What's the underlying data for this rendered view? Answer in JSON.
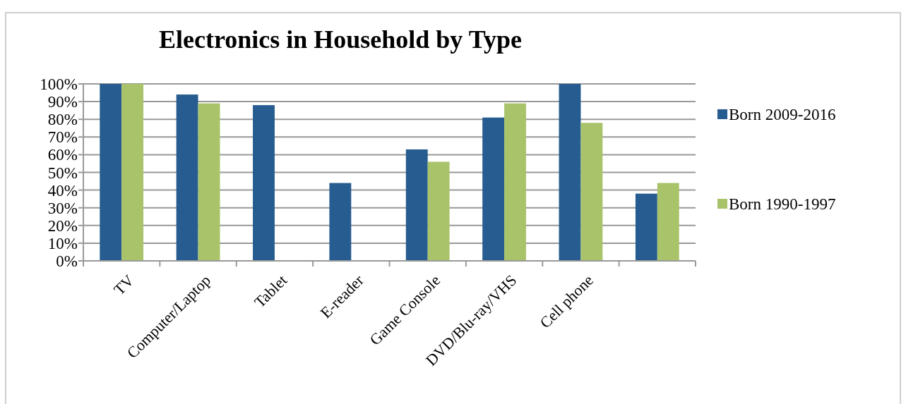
{
  "chart_data": {
    "type": "bar",
    "title": "Electronics in Household by Type",
    "categories": [
      "TV",
      "Computer/Laptop",
      "Tablet",
      "E-reader",
      "Game Console",
      "DVD/Blu-ray/VHS",
      "Cell phone",
      null
    ],
    "series": [
      {
        "name": "Born 2009-2016",
        "color": "#265c8f",
        "values": [
          100,
          94,
          88,
          44,
          63,
          81,
          100,
          38
        ]
      },
      {
        "name": "Born 1990-1997",
        "color": "#a9c36a",
        "values": [
          100,
          89,
          null,
          null,
          56,
          89,
          78,
          44
        ]
      }
    ],
    "ylim": [
      0,
      100
    ],
    "yticks": [
      {
        "value": 0,
        "label": "0%"
      },
      {
        "value": 10,
        "label": "10%"
      },
      {
        "value": 20,
        "label": "20%"
      },
      {
        "value": 30,
        "label": "30%"
      },
      {
        "value": 40,
        "label": "40%"
      },
      {
        "value": 50,
        "label": "50%"
      },
      {
        "value": 60,
        "label": "60%"
      },
      {
        "value": 70,
        "label": "70%"
      },
      {
        "value": 80,
        "label": "80%"
      },
      {
        "value": 90,
        "label": "90%"
      },
      {
        "value": 100,
        "label": "100%"
      }
    ],
    "grid": "y",
    "legend": "right"
  }
}
